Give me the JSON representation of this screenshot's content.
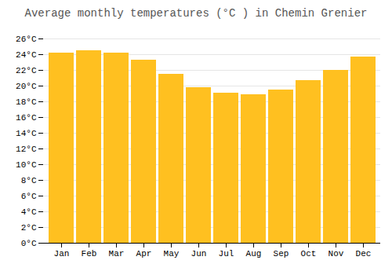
{
  "chart_data": {
    "type": "bar",
    "title": "Average monthly temperatures (°C ) in Chemin Grenier",
    "categories": [
      "Jan",
      "Feb",
      "Mar",
      "Apr",
      "May",
      "Jun",
      "Jul",
      "Aug",
      "Sep",
      "Oct",
      "Nov",
      "Dec"
    ],
    "values": [
      24.2,
      24.5,
      24.2,
      23.3,
      21.5,
      19.8,
      19.1,
      18.9,
      19.5,
      20.7,
      22.0,
      23.7
    ],
    "color": "#FFC020",
    "ylim": [
      0,
      26
    ],
    "yticks": [
      {
        "value": 0,
        "label": "0°C"
      },
      {
        "value": 2,
        "label": "2°C"
      },
      {
        "value": 4,
        "label": "4°C"
      },
      {
        "value": 6,
        "label": "6°C"
      },
      {
        "value": 8,
        "label": "8°C"
      },
      {
        "value": 10,
        "label": "10°C"
      },
      {
        "value": 12,
        "label": "12°C"
      },
      {
        "value": 14,
        "label": "14°C"
      },
      {
        "value": 16,
        "label": "16°C"
      },
      {
        "value": 18,
        "label": "18°C"
      },
      {
        "value": 20,
        "label": "20°C"
      },
      {
        "value": 22,
        "label": "22°C"
      },
      {
        "value": 24,
        "label": "24°C"
      },
      {
        "value": 26,
        "label": "26°C"
      }
    ],
    "grid": true
  }
}
